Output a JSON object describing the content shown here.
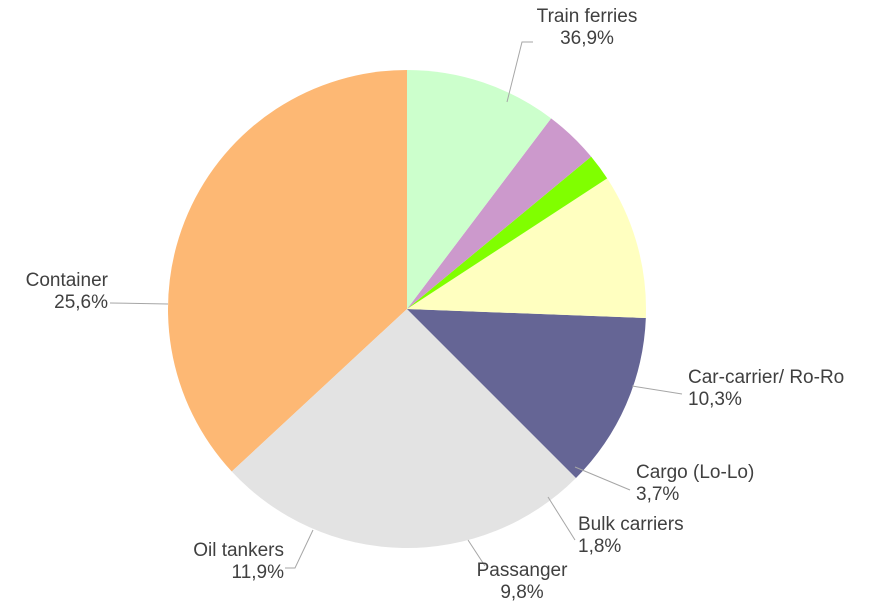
{
  "chart_data": {
    "type": "pie",
    "title": "",
    "start_angle_deg": 90,
    "direction": "counterclockwise",
    "legend": "none",
    "slices": [
      {
        "label": "Train ferries",
        "value": 36.9,
        "value_label": "36,9%",
        "color": "#FDB874"
      },
      {
        "label": "Container",
        "value": 25.6,
        "value_label": "25,6%",
        "color": "#E3E3E3"
      },
      {
        "label": "Oil tankers",
        "value": 11.9,
        "value_label": "11,9%",
        "color": "#656595"
      },
      {
        "label": "Passanger",
        "value": 9.8,
        "value_label": "9,8%",
        "color": "#FFFFC0"
      },
      {
        "label": "Bulk carriers",
        "value": 1.8,
        "value_label": "1,8%",
        "color": "#80FF00"
      },
      {
        "label": "Cargo (Lo-Lo)",
        "value": 3.7,
        "value_label": "3,7%",
        "color": "#CC99CC"
      },
      {
        "label": "Car-carrier/ Ro-Ro",
        "value": 10.3,
        "value_label": "10,3%",
        "color": "#CCFFCC"
      }
    ]
  }
}
